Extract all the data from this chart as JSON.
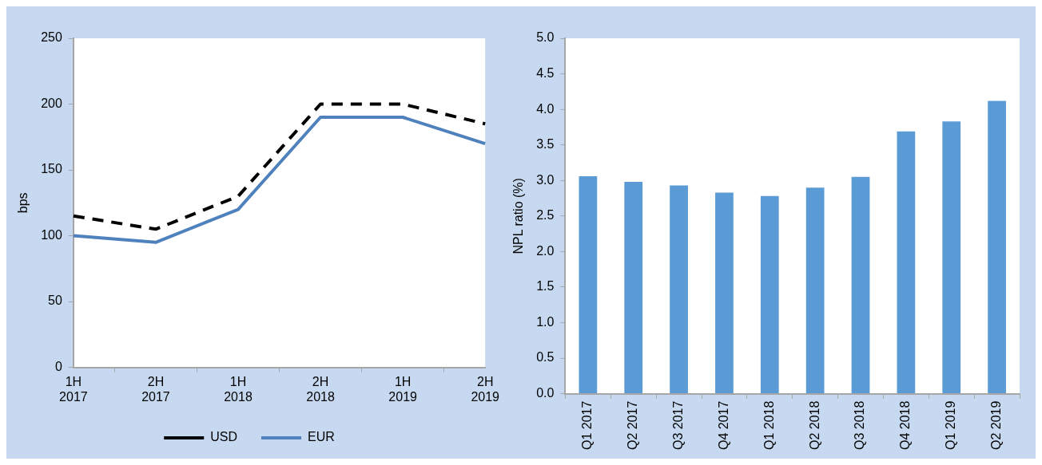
{
  "chart_data": [
    {
      "type": "line",
      "ylabel": "bps",
      "categories": [
        "1H 2017",
        "2H 2017",
        "1H 2018",
        "2H 2018",
        "1H 2019",
        "2H 2019"
      ],
      "series": [
        {
          "name": "USD",
          "color": "#000000",
          "line_style": "dashed",
          "values": [
            115,
            105,
            130,
            200,
            200,
            185
          ]
        },
        {
          "name": "EUR",
          "color": "#4f81bd",
          "line_style": "solid",
          "values": [
            100,
            95,
            120,
            190,
            190,
            170
          ]
        }
      ],
      "ylim": [
        0,
        250
      ],
      "yticks": [
        0,
        50,
        100,
        150,
        200,
        250
      ],
      "grid": false,
      "legend": "bottom",
      "marker": "none"
    },
    {
      "type": "bar",
      "ylabel": "NPL ratio (%)",
      "categories": [
        "Q1 2017",
        "Q2 2017",
        "Q3 2017",
        "Q4 2017",
        "Q1 2018",
        "Q2 2018",
        "Q3 2018",
        "Q4 2018",
        "Q1 2019",
        "Q2 2019"
      ],
      "values": [
        3.06,
        2.98,
        2.93,
        2.83,
        2.78,
        2.9,
        3.05,
        3.69,
        3.83,
        4.12
      ],
      "color": "#5b9bd5",
      "ylim": [
        0,
        5
      ],
      "yticks": [
        {
          "value": 0,
          "label": "0.0"
        },
        {
          "value": 0.5,
          "label": "0.5"
        },
        {
          "value": 1,
          "label": "1.0"
        },
        {
          "value": 1.5,
          "label": "1.5"
        },
        {
          "value": 2,
          "label": "2.0"
        },
        {
          "value": 2.5,
          "label": "2.5"
        },
        {
          "value": 3,
          "label": "3.0"
        },
        {
          "value": 3.5,
          "label": "3.5"
        },
        {
          "value": 4,
          "label": "4.0"
        },
        {
          "value": 4.5,
          "label": "4.5"
        },
        {
          "value": 5,
          "label": "5.0"
        }
      ],
      "grid": false
    }
  ]
}
